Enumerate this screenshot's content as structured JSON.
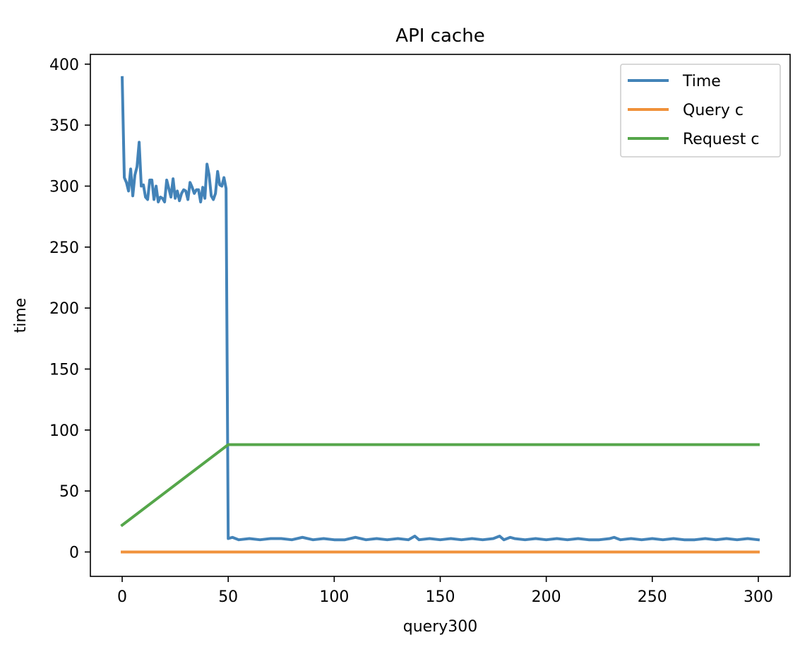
{
  "chart_data": {
    "type": "line",
    "title": "API cache",
    "xlabel": "query300",
    "ylabel": "time",
    "xlim": [
      -15,
      315
    ],
    "ylim": [
      -20,
      408
    ],
    "xticks": [
      0,
      50,
      100,
      150,
      200,
      250,
      300
    ],
    "yticks": [
      0,
      50,
      100,
      150,
      200,
      250,
      300,
      350,
      400
    ],
    "grid": false,
    "legend_position": "top-right",
    "series": [
      {
        "name": "Time",
        "color": "#4383b8",
        "x": [
          0,
          1,
          2,
          3,
          4,
          5,
          6,
          7,
          8,
          9,
          10,
          11,
          12,
          13,
          14,
          15,
          16,
          17,
          18,
          19,
          20,
          21,
          22,
          23,
          24,
          25,
          26,
          27,
          28,
          29,
          30,
          31,
          32,
          33,
          34,
          35,
          36,
          37,
          38,
          39,
          40,
          41,
          42,
          43,
          44,
          45,
          46,
          47,
          48,
          49,
          50,
          52,
          55,
          60,
          65,
          70,
          75,
          80,
          85,
          90,
          95,
          100,
          105,
          110,
          115,
          120,
          125,
          130,
          135,
          138,
          140,
          145,
          150,
          155,
          160,
          165,
          170,
          175,
          178,
          180,
          183,
          185,
          190,
          195,
          200,
          205,
          210,
          215,
          220,
          225,
          230,
          232,
          235,
          240,
          245,
          250,
          255,
          260,
          265,
          270,
          275,
          280,
          285,
          290,
          295,
          300
        ],
        "values": [
          389,
          307,
          303,
          296,
          314,
          292,
          309,
          316,
          336,
          300,
          301,
          291,
          289,
          305,
          305,
          289,
          300,
          287,
          291,
          290,
          287,
          305,
          298,
          291,
          306,
          290,
          296,
          288,
          294,
          297,
          296,
          289,
          303,
          299,
          294,
          297,
          297,
          287,
          299,
          290,
          318,
          309,
          292,
          289,
          294,
          312,
          301,
          300,
          307,
          298,
          11,
          12,
          10,
          11,
          10,
          11,
          11,
          10,
          12,
          10,
          11,
          10,
          10,
          12,
          10,
          11,
          10,
          11,
          10,
          13,
          10,
          11,
          10,
          11,
          10,
          11,
          10,
          11,
          13,
          10,
          12,
          11,
          10,
          11,
          10,
          11,
          10,
          11,
          10,
          10,
          11,
          12,
          10,
          11,
          10,
          11,
          10,
          11,
          10,
          10,
          11,
          10,
          11,
          10,
          11,
          10
        ]
      },
      {
        "name": "Query c",
        "color": "#f0913a",
        "x": [
          0,
          300
        ],
        "values": [
          0,
          0
        ]
      },
      {
        "name": "Request c",
        "color": "#55a64a",
        "x": [
          0,
          50,
          300
        ],
        "values": [
          22,
          88,
          88
        ]
      }
    ]
  }
}
